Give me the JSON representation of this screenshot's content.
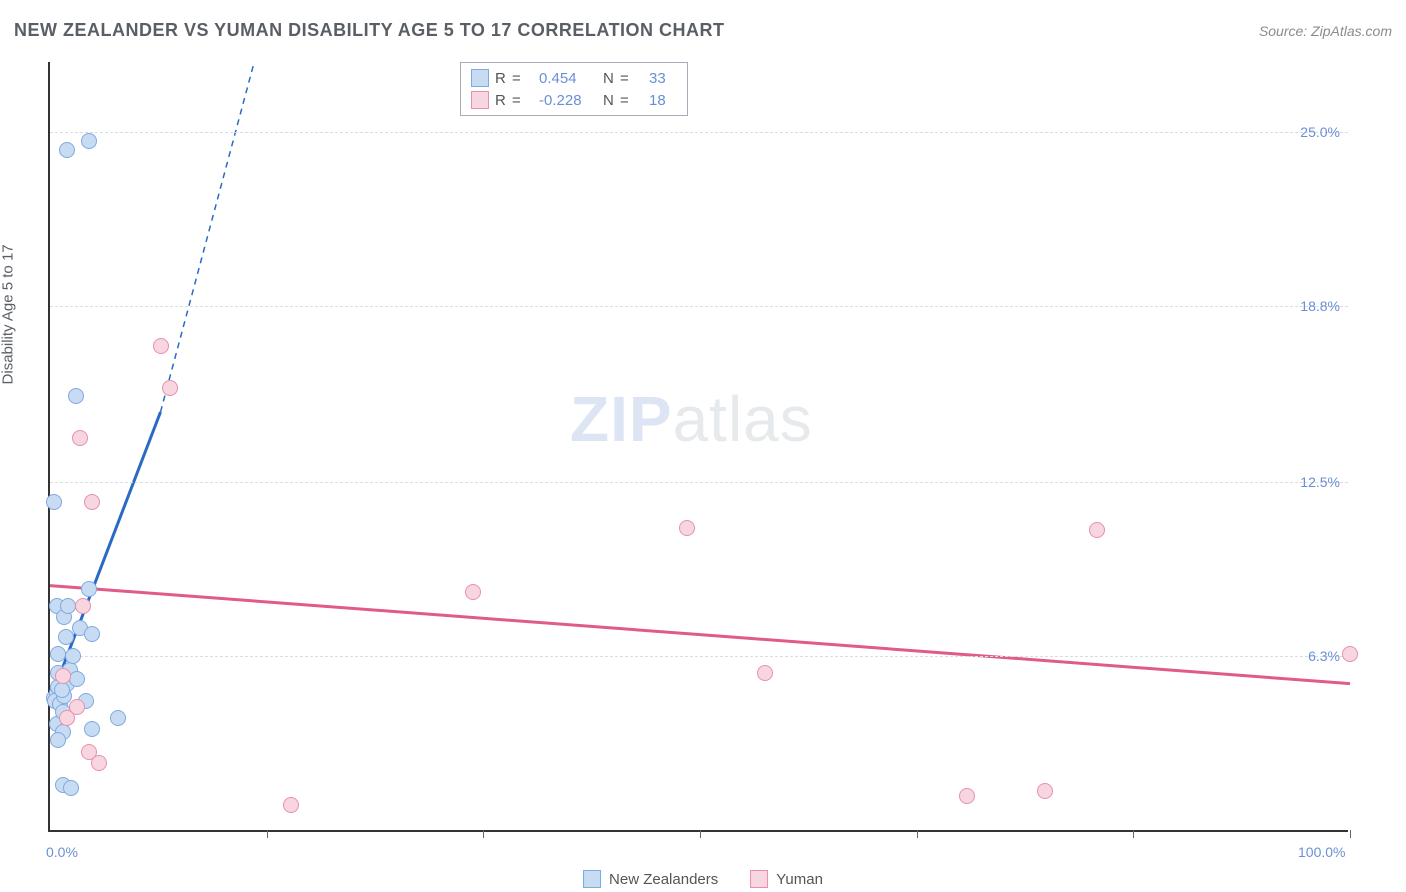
{
  "header": {
    "title": "NEW ZEALANDER VS YUMAN DISABILITY AGE 5 TO 17 CORRELATION CHART",
    "source_prefix": "Source: ",
    "source_name": "ZipAtlas.com"
  },
  "y_axis_label": "Disability Age 5 to 17",
  "watermark": {
    "zip": "ZIP",
    "atlas": "atlas"
  },
  "chart": {
    "type": "scatter",
    "background_color": "#ffffff",
    "grid_color": "#d9dce0",
    "axis_color": "#333333",
    "tick_label_color": "#6a8fd6",
    "xlim": [
      0,
      100
    ],
    "ylim": [
      0,
      27.5
    ],
    "y_ticks": [
      {
        "value": 6.3,
        "label": "6.3%"
      },
      {
        "value": 12.5,
        "label": "12.5%"
      },
      {
        "value": 18.8,
        "label": "18.8%"
      },
      {
        "value": 25.0,
        "label": "25.0%"
      }
    ],
    "x_tick_marks": [
      16.67,
      33.33,
      50.0,
      66.67,
      83.33,
      100.0
    ],
    "x_tick_labels": [
      {
        "value": 0,
        "label": "0.0%"
      },
      {
        "value": 100,
        "label": "100.0%"
      }
    ],
    "marker_radius": 8,
    "marker_stroke_width": 1.5,
    "trend_line_width": 3,
    "series": [
      {
        "key": "nz",
        "label": "New Zealanders",
        "fill": "#c7dbf3",
        "stroke": "#7fa9e0",
        "line_color": "#2b6ac4",
        "R": "0.454",
        "N": "33",
        "trend": {
          "x1": 0,
          "y1": 4.7,
          "x2": 8.5,
          "y2": 15.0,
          "dash_extend_to": [
            16,
            28
          ]
        },
        "points": [
          [
            0.3,
            4.7
          ],
          [
            0.5,
            4.9
          ],
          [
            0.6,
            5.1
          ],
          [
            0.4,
            4.6
          ],
          [
            0.8,
            4.5
          ],
          [
            1.1,
            4.8
          ],
          [
            1.3,
            5.2
          ],
          [
            0.6,
            5.6
          ],
          [
            0.9,
            5.0
          ],
          [
            1.5,
            5.7
          ],
          [
            1.8,
            6.2
          ],
          [
            1.2,
            6.9
          ],
          [
            2.3,
            7.2
          ],
          [
            3.2,
            7.0
          ],
          [
            2.8,
            4.6
          ],
          [
            0.5,
            3.8
          ],
          [
            1.0,
            3.5
          ],
          [
            0.6,
            3.2
          ],
          [
            3.2,
            3.6
          ],
          [
            5.2,
            4.0
          ],
          [
            1.0,
            1.6
          ],
          [
            1.6,
            1.5
          ],
          [
            0.5,
            8.0
          ],
          [
            1.1,
            7.6
          ],
          [
            1.4,
            8.0
          ],
          [
            3.0,
            8.6
          ],
          [
            0.3,
            11.7
          ],
          [
            2.0,
            15.5
          ],
          [
            1.3,
            24.3
          ],
          [
            3.0,
            24.6
          ],
          [
            0.6,
            6.3
          ],
          [
            1.0,
            4.2
          ],
          [
            2.1,
            5.4
          ]
        ]
      },
      {
        "key": "yuman",
        "label": "Yuman",
        "fill": "#f7d6e0",
        "stroke": "#e88fae",
        "line_color": "#e05a8a",
        "R": "-0.228",
        "N": "18",
        "trend": {
          "x1": 0,
          "y1": 8.8,
          "x2": 100,
          "y2": 5.3
        },
        "points": [
          [
            1.3,
            4.0
          ],
          [
            2.1,
            4.4
          ],
          [
            3.0,
            2.8
          ],
          [
            3.8,
            2.4
          ],
          [
            2.5,
            8.0
          ],
          [
            3.2,
            11.7
          ],
          [
            2.3,
            14.0
          ],
          [
            8.5,
            17.3
          ],
          [
            9.2,
            15.8
          ],
          [
            18.5,
            0.9
          ],
          [
            32.5,
            8.5
          ],
          [
            49.0,
            10.8
          ],
          [
            55.0,
            5.6
          ],
          [
            80.5,
            10.7
          ],
          [
            70.5,
            1.2
          ],
          [
            76.5,
            1.4
          ],
          [
            100.0,
            6.3
          ],
          [
            1.0,
            5.5
          ]
        ]
      }
    ]
  },
  "top_legend": {
    "R_label": "R  =",
    "N_label": "N  ="
  },
  "bottom_legend": {
    "items": [
      "nz",
      "yuman"
    ]
  }
}
